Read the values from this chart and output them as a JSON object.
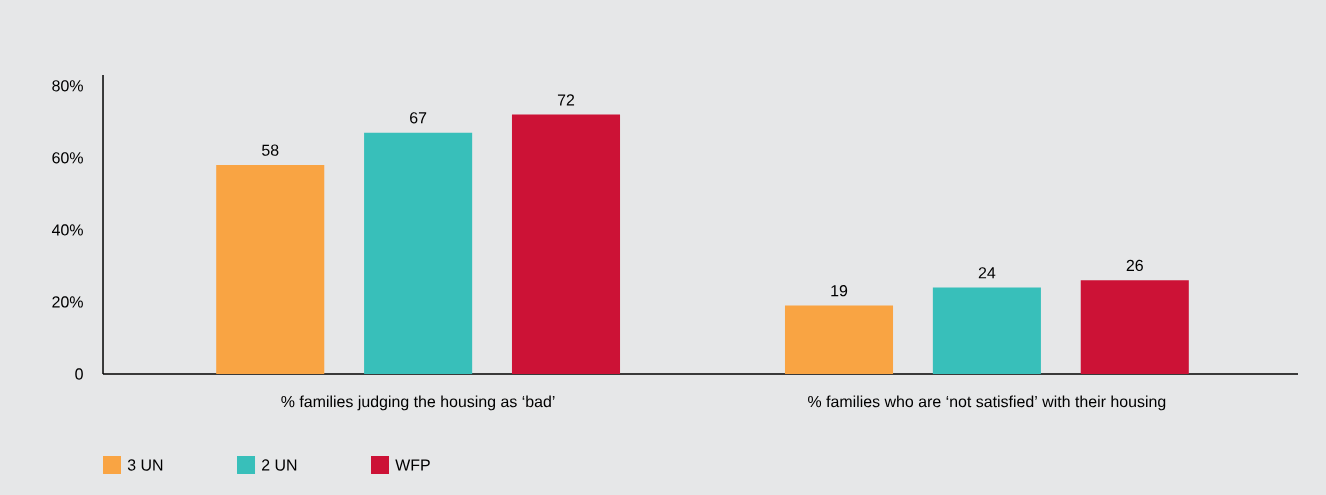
{
  "chart_data": {
    "type": "bar",
    "categories": [
      "% families judging the housing as ‘bad’",
      "% families who are ‘not satisfied’ with their housing"
    ],
    "series": [
      {
        "name": "3 UN",
        "color": "#f9a443",
        "values": [
          58,
          19
        ]
      },
      {
        "name": "2 UN",
        "color": "#38bfba",
        "values": [
          67,
          24
        ]
      },
      {
        "name": "WFP",
        "color": "#cc1236",
        "values": [
          72,
          26
        ]
      }
    ],
    "ylim": [
      0,
      83
    ],
    "yticks": [
      0,
      {
        "value": 20,
        "label": "20%"
      },
      {
        "value": 40,
        "label": "40%"
      },
      {
        "value": 60,
        "label": "60%"
      },
      {
        "value": 80,
        "label": "80%"
      }
    ],
    "data_labels": true,
    "grid": false,
    "legend": "bottom left"
  }
}
